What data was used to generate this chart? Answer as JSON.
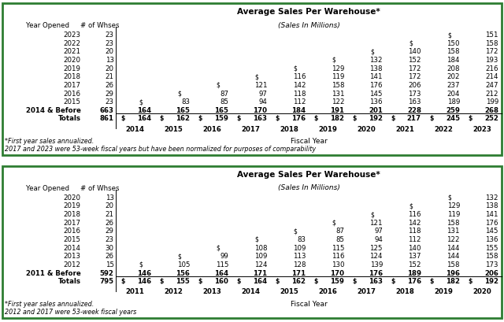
{
  "table1": {
    "title": "Average Sales Per Warehouse*",
    "subtitle": "(Sales In Millions)",
    "fiscal_years": [
      "2014",
      "2015",
      "2016",
      "2017",
      "2018",
      "2019",
      "2020",
      "2021",
      "2022",
      "2023"
    ],
    "col_header_label": "Fiscal Year",
    "rows": [
      {
        "year": "2023",
        "n_wh": "23",
        "vals": [
          null,
          null,
          null,
          null,
          null,
          null,
          null,
          null,
          "$ ",
          "151"
        ]
      },
      {
        "year": "2022",
        "n_wh": "23",
        "vals": [
          null,
          null,
          null,
          null,
          null,
          null,
          null,
          "$ ",
          "150",
          "158"
        ]
      },
      {
        "year": "2021",
        "n_wh": "20",
        "vals": [
          null,
          null,
          null,
          null,
          null,
          null,
          "$ ",
          "140",
          "158",
          "172"
        ]
      },
      {
        "year": "2020",
        "n_wh": "13",
        "vals": [
          null,
          null,
          null,
          null,
          null,
          "$ ",
          "132",
          "152",
          "184",
          "193"
        ]
      },
      {
        "year": "2019",
        "n_wh": "20",
        "vals": [
          null,
          null,
          null,
          null,
          "$ ",
          "129",
          "138",
          "172",
          "208",
          "216"
        ]
      },
      {
        "year": "2018",
        "n_wh": "21",
        "vals": [
          null,
          null,
          null,
          "$ ",
          "116",
          "119",
          "141",
          "172",
          "202",
          "214"
        ]
      },
      {
        "year": "2017",
        "n_wh": "26",
        "vals": [
          null,
          null,
          "$ ",
          "121",
          "142",
          "158",
          "176",
          "206",
          "237",
          "247"
        ]
      },
      {
        "year": "2016",
        "n_wh": "29",
        "vals": [
          null,
          "$ ",
          "87",
          "97",
          "118",
          "131",
          "145",
          "173",
          "204",
          "212"
        ]
      },
      {
        "year": "2015",
        "n_wh": "23",
        "vals": [
          "$ ",
          "83",
          "85",
          "94",
          "112",
          "122",
          "136",
          "163",
          "189",
          "199"
        ]
      },
      {
        "year": "2014 & Before",
        "n_wh": "663",
        "vals": [
          "164",
          "165",
          "165",
          "170",
          "184",
          "191",
          "201",
          "228",
          "259",
          "268"
        ],
        "bold": true,
        "before": true
      },
      {
        "year": "Totals",
        "n_wh": "861",
        "vals": [
          "164",
          "162",
          "159",
          "163",
          "176",
          "182",
          "192",
          "217",
          "245",
          "252"
        ],
        "bold": true,
        "totals": true
      }
    ],
    "footnotes": [
      "*First year sales annualized.",
      "2017 and 2023 were 53-week fiscal years but have been normalized for purposes of comparability"
    ]
  },
  "table2": {
    "title": "Average Sales Per Warehouse*",
    "subtitle": "(Sales In Millions)",
    "fiscal_years": [
      "2011",
      "2012",
      "2013",
      "2014",
      "2015",
      "2016",
      "2017",
      "2018",
      "2019",
      "2020"
    ],
    "col_header_label": "Fiscal Year",
    "rows": [
      {
        "year": "2020",
        "n_wh": "13",
        "vals": [
          null,
          null,
          null,
          null,
          null,
          null,
          null,
          null,
          "$ ",
          "132"
        ]
      },
      {
        "year": "2019",
        "n_wh": "20",
        "vals": [
          null,
          null,
          null,
          null,
          null,
          null,
          null,
          "$ ",
          "129",
          "138"
        ]
      },
      {
        "year": "2018",
        "n_wh": "21",
        "vals": [
          null,
          null,
          null,
          null,
          null,
          null,
          "$ ",
          "116",
          "119",
          "141"
        ]
      },
      {
        "year": "2017",
        "n_wh": "26",
        "vals": [
          null,
          null,
          null,
          null,
          null,
          "$ ",
          "121",
          "142",
          "158",
          "176"
        ]
      },
      {
        "year": "2016",
        "n_wh": "29",
        "vals": [
          null,
          null,
          null,
          null,
          "$ ",
          "87",
          "97",
          "118",
          "131",
          "145"
        ]
      },
      {
        "year": "2015",
        "n_wh": "23",
        "vals": [
          null,
          null,
          null,
          "$ ",
          "83",
          "85",
          "94",
          "112",
          "122",
          "136"
        ]
      },
      {
        "year": "2014",
        "n_wh": "30",
        "vals": [
          null,
          null,
          "$ ",
          "108",
          "109",
          "115",
          "125",
          "140",
          "144",
          "155"
        ]
      },
      {
        "year": "2013",
        "n_wh": "26",
        "vals": [
          null,
          "$ ",
          "99",
          "109",
          "113",
          "116",
          "124",
          "137",
          "144",
          "158"
        ]
      },
      {
        "year": "2012",
        "n_wh": "15",
        "vals": [
          "$ ",
          "105",
          "115",
          "124",
          "128",
          "130",
          "139",
          "152",
          "158",
          "173"
        ]
      },
      {
        "year": "2011 & Before",
        "n_wh": "592",
        "vals": [
          "146",
          "156",
          "164",
          "171",
          "171",
          "170",
          "176",
          "189",
          "196",
          "206"
        ],
        "bold": true,
        "before": true
      },
      {
        "year": "Totals",
        "n_wh": "795",
        "vals": [
          "146",
          "155",
          "160",
          "164",
          "162",
          "159",
          "163",
          "176",
          "182",
          "192"
        ],
        "bold": true,
        "totals": true
      }
    ],
    "footnotes": [
      "*First year sales annualized.",
      "2012 and 2017 were 53-week fiscal years"
    ]
  },
  "border_color": "#2e7d32",
  "bg_color": "#ffffff"
}
